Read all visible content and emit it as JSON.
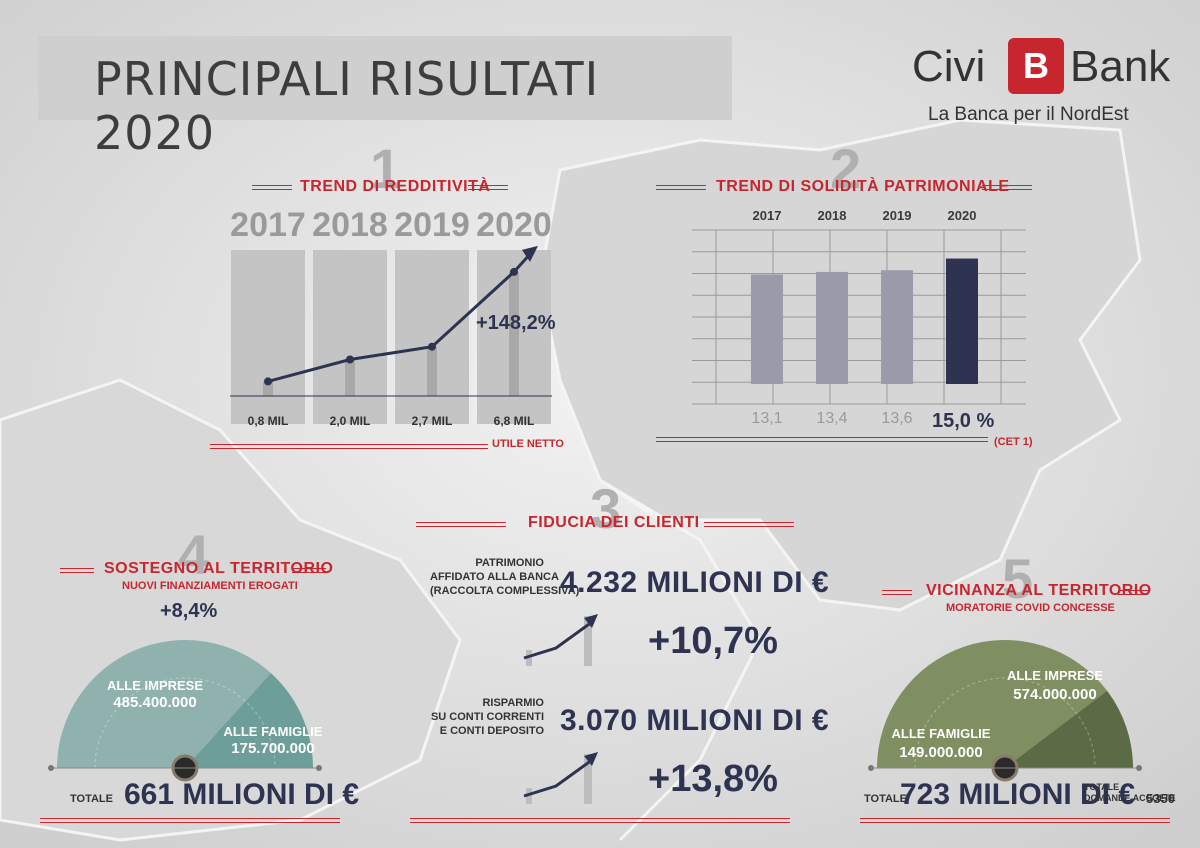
{
  "header": {
    "title": "PRINCIPALI RISULTATI 2020",
    "logo": {
      "word1": "Civi",
      "word2": "Bank",
      "mark": "B",
      "tagline": "La Banca per il NordEst"
    }
  },
  "colors": {
    "accent": "#c8262e",
    "navy": "#2d3350",
    "teal": "#6e9e9a",
    "olive": "#6f8358",
    "gray_bar": "#9a9aa8"
  },
  "sections": {
    "s1": {
      "number": "1",
      "title": "TREND DI REDDITIVITÀ",
      "footer": "UTILE NETTO",
      "growth": "+148,2%"
    },
    "s2": {
      "number": "2",
      "title": "TREND DI SOLIDITÀ PATRIMONIALE",
      "footer": "(CET 1)"
    },
    "s3": {
      "number": "3",
      "title": "FIDUCIA DEI CLIENTI",
      "block1": {
        "label_lines": [
          "PATRIMONIO",
          "AFFIDATO ALLA BANCA",
          "(RACCOLTA COMPLESSIVA)"
        ],
        "amount": "4.232 MILIONI DI €",
        "growth": "+10,7%"
      },
      "block2": {
        "label_lines": [
          "RISPARMIO",
          "SU CONTI CORRENTI",
          "E CONTI DEPOSITO"
        ],
        "amount": "3.070 MILIONI DI €",
        "growth": "+13,8%"
      }
    },
    "s4": {
      "number": "4",
      "title": "SOSTEGNO AL TERRITORIO",
      "subtitle": "NUOVI FINANZIAMENTI EROGATI",
      "growth": "+8,4%",
      "imprese_label": "ALLE IMPRESE",
      "imprese_value": "485.400.000",
      "famiglie_label": "ALLE FAMIGLIE",
      "famiglie_value": "175.700.000",
      "total_label": "TOTALE",
      "total_value": "661 MILIONI DI €"
    },
    "s5": {
      "number": "5",
      "title": "VICINANZA AL TERRITORIO",
      "subtitle": "MORATORIE COVID CONCESSE",
      "imprese_label": "ALLE IMPRESE",
      "imprese_value": "574.000.000",
      "famiglie_label": "ALLE FAMIGLIE",
      "famiglie_value": "149.000.000",
      "total_label": "TOTALE",
      "total_value": "723 MILIONI DI €",
      "accepted_label_lines": [
        "TOTALE",
        "DOMANDE ACCOLTE"
      ],
      "accepted_value": "5350"
    }
  },
  "chart_data": [
    {
      "type": "line",
      "title": "TREND DI REDDITIVITÀ",
      "categories": [
        "2017",
        "2018",
        "2019",
        "2020"
      ],
      "values": [
        0.8,
        2.0,
        2.7,
        6.8
      ],
      "value_labels": [
        "0,8 MIL",
        "2,0 MIL",
        "2,7 MIL",
        "6,8 MIL"
      ],
      "xlabel": "UTILE NETTO",
      "ylabel": "",
      "annotation": "+148,2%"
    },
    {
      "type": "bar",
      "title": "TREND DI SOLIDITÀ PATRIMONIALE",
      "categories": [
        "2017",
        "2018",
        "2019",
        "2020"
      ],
      "values": [
        13.1,
        13.4,
        13.6,
        15.0
      ],
      "value_labels": [
        "13,1",
        "13,4",
        "13,6",
        "15,0 %"
      ],
      "xlabel": "(CET 1)",
      "ylabel": "",
      "grid": true
    },
    {
      "type": "pie",
      "title": "SOSTEGNO AL TERRITORIO",
      "categories": [
        "ALLE IMPRESE",
        "ALLE FAMIGLIE"
      ],
      "values": [
        485400000,
        175700000
      ]
    },
    {
      "type": "pie",
      "title": "VICINANZA AL TERRITORIO",
      "categories": [
        "ALLE IMPRESE",
        "ALLE FAMIGLIE"
      ],
      "values": [
        574000000,
        149000000
      ]
    }
  ]
}
